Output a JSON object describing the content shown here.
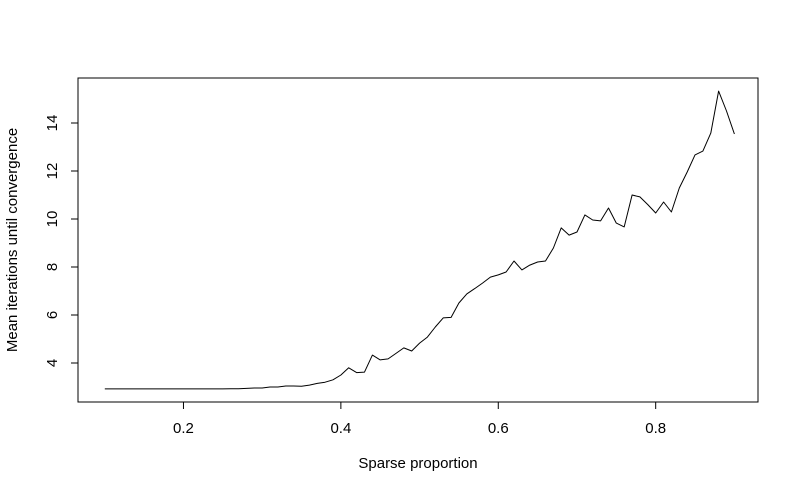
{
  "chart_data": {
    "type": "line",
    "title": "",
    "xlabel": "Sparse proportion",
    "ylabel": "Mean iterations until convergence",
    "line_color": "#000000",
    "background_color": "#ffffff",
    "grid": false,
    "legend": null,
    "box_around_plot": true,
    "xlim": [
      0.066,
      0.93
    ],
    "ylim": [
      2.375,
      15.875
    ],
    "x_ticks": [
      0.2,
      0.4,
      0.6,
      0.8
    ],
    "x_tick_labels": [
      "0.2",
      "0.4",
      "0.6",
      "0.8"
    ],
    "y_ticks": [
      4,
      6,
      8,
      10,
      12,
      14
    ],
    "y_tick_labels": [
      "4",
      "6",
      "8",
      "10",
      "12",
      "14"
    ],
    "x": [
      0.1,
      0.11,
      0.12,
      0.13,
      0.14,
      0.15,
      0.16,
      0.17,
      0.18,
      0.19,
      0.2,
      0.21,
      0.22,
      0.23,
      0.24,
      0.25,
      0.26,
      0.27,
      0.28,
      0.29,
      0.3,
      0.31,
      0.32,
      0.33,
      0.34,
      0.35,
      0.36,
      0.37,
      0.38,
      0.39,
      0.4,
      0.41,
      0.42,
      0.43,
      0.44,
      0.45,
      0.46,
      0.47,
      0.48,
      0.49,
      0.5,
      0.51,
      0.52,
      0.53,
      0.54,
      0.55,
      0.56,
      0.57,
      0.58,
      0.59,
      0.6,
      0.61,
      0.62,
      0.63,
      0.64,
      0.65,
      0.66,
      0.67,
      0.68,
      0.69,
      0.7,
      0.71,
      0.72,
      0.73,
      0.74,
      0.75,
      0.76,
      0.77,
      0.78,
      0.79,
      0.8,
      0.81,
      0.82,
      0.83,
      0.84,
      0.85,
      0.86,
      0.87,
      0.88,
      0.89,
      0.9
    ],
    "y": [
      2.92,
      2.92,
      2.92,
      2.92,
      2.92,
      2.92,
      2.92,
      2.92,
      2.92,
      2.92,
      2.92,
      2.92,
      2.92,
      2.92,
      2.92,
      2.92,
      2.93,
      2.93,
      2.94,
      2.96,
      2.96,
      3.0,
      3.0,
      3.04,
      3.04,
      3.03,
      3.08,
      3.15,
      3.2,
      3.3,
      3.5,
      3.8,
      3.6,
      3.62,
      4.33,
      4.13,
      4.17,
      4.4,
      4.63,
      4.5,
      4.83,
      5.08,
      5.5,
      5.88,
      5.9,
      6.5,
      6.88,
      7.1,
      7.33,
      7.58,
      7.67,
      7.79,
      8.25,
      7.88,
      8.08,
      8.21,
      8.25,
      8.79,
      9.63,
      9.33,
      9.46,
      10.17,
      9.96,
      9.92,
      10.46,
      9.83,
      9.67,
      11.0,
      10.92,
      10.6,
      10.25,
      10.71,
      10.29,
      11.29,
      11.96,
      12.67,
      12.83,
      13.58,
      15.33,
      14.5,
      13.54
    ]
  }
}
